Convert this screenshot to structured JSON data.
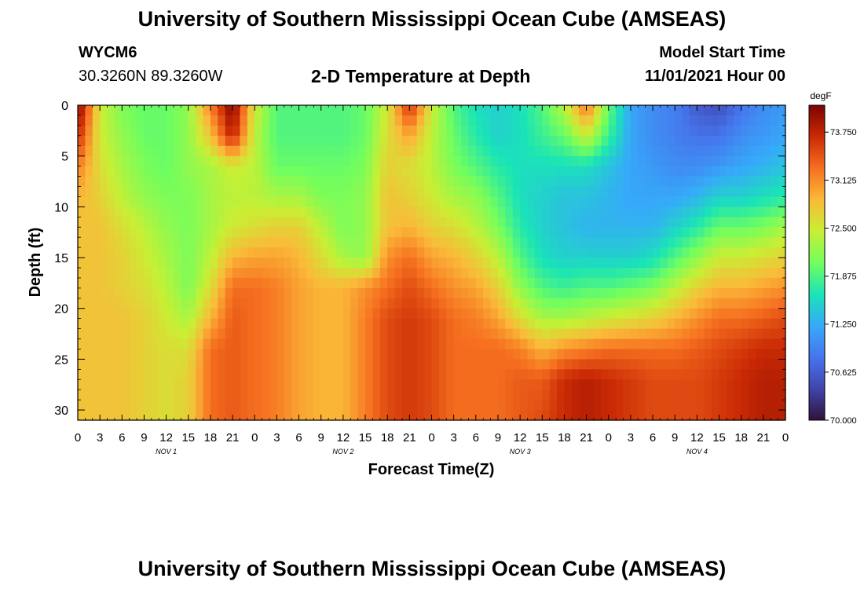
{
  "header": {
    "title": "University of Southern Mississippi Ocean Cube (AMSEAS)",
    "station": "WYCM6",
    "coords": "30.3260N  89.3260W",
    "plot_title": "2-D Temperature at Depth",
    "model_start_label": "Model Start Time",
    "model_start_value": "11/01/2021 Hour 00"
  },
  "footer": {
    "title": "University of Southern Mississippi Ocean Cube (AMSEAS)"
  },
  "chart_data": {
    "type": "heatmap",
    "title": "2-D Temperature at Depth",
    "xlabel": "Forecast Time(Z)",
    "ylabel": "Depth (ft)",
    "x_hours_range": [
      0,
      96
    ],
    "x_tick_labels": [
      "0",
      "3",
      "6",
      "9",
      "12",
      "15",
      "18",
      "21",
      "0",
      "3",
      "6",
      "9",
      "12",
      "15",
      "18",
      "21",
      "0",
      "3",
      "6",
      "9",
      "12",
      "15",
      "18",
      "21",
      "0",
      "3",
      "6",
      "9",
      "12",
      "15",
      "18",
      "21",
      "0"
    ],
    "day_labels": [
      "NOV 1",
      "NOV 2",
      "NOV 3",
      "NOV 4"
    ],
    "y_range": [
      0,
      31
    ],
    "y_ticks": [
      0,
      5,
      10,
      15,
      20,
      25,
      30
    ],
    "colorbar": {
      "unit": "degF",
      "min": 70.0,
      "max": 74.1,
      "tick_values": [
        73.75,
        73.125,
        72.5,
        71.875,
        71.25,
        70.625,
        70.0
      ],
      "tick_labels": [
        "73.750",
        "73.125",
        "72.500",
        "71.875",
        "71.250",
        "70.625",
        "70.000"
      ]
    },
    "profile_depths_ft": [
      0,
      3,
      6,
      9,
      12,
      15,
      18,
      21,
      24,
      27,
      31
    ],
    "profiles": [
      {
        "hour": 0,
        "temps": [
          74.1,
          73.7,
          73.2,
          72.9,
          72.8,
          72.8,
          72.8,
          72.8,
          72.8,
          72.8,
          72.8
        ]
      },
      {
        "hour": 3,
        "temps": [
          72.5,
          72.5,
          72.6,
          72.7,
          72.8,
          72.8,
          72.8,
          72.8,
          72.8,
          72.8,
          72.8
        ]
      },
      {
        "hour": 6,
        "temps": [
          72.1,
          72.2,
          72.3,
          72.4,
          72.6,
          72.7,
          72.7,
          72.8,
          72.8,
          72.8,
          72.8
        ]
      },
      {
        "hour": 9,
        "temps": [
          72.0,
          72.0,
          72.1,
          72.2,
          72.4,
          72.5,
          72.6,
          72.7,
          72.7,
          72.7,
          72.7
        ]
      },
      {
        "hour": 12,
        "temps": [
          72.0,
          72.0,
          72.0,
          72.1,
          72.2,
          72.3,
          72.4,
          72.5,
          72.6,
          72.6,
          72.6
        ]
      },
      {
        "hour": 15,
        "temps": [
          72.2,
          72.2,
          72.2,
          72.1,
          72.1,
          72.1,
          72.1,
          72.3,
          72.6,
          72.7,
          72.7
        ]
      },
      {
        "hour": 18,
        "temps": [
          73.2,
          72.8,
          72.3,
          72.3,
          72.3,
          72.4,
          72.6,
          72.9,
          73.3,
          73.3,
          73.3
        ]
      },
      {
        "hour": 21,
        "temps": [
          74.1,
          73.8,
          72.5,
          72.4,
          72.5,
          72.9,
          73.3,
          73.4,
          73.4,
          73.4,
          73.4
        ]
      },
      {
        "hour": 24,
        "temps": [
          72.5,
          72.4,
          72.4,
          72.4,
          72.6,
          73.0,
          73.3,
          73.3,
          73.3,
          73.3,
          73.3
        ]
      },
      {
        "hour": 27,
        "temps": [
          71.9,
          71.9,
          72.0,
          72.3,
          72.7,
          73.0,
          73.2,
          73.2,
          73.2,
          73.2,
          73.2
        ]
      },
      {
        "hour": 30,
        "temps": [
          71.9,
          71.9,
          72.0,
          72.3,
          72.7,
          72.9,
          73.0,
          73.0,
          73.0,
          73.0,
          73.0
        ]
      },
      {
        "hour": 33,
        "temps": [
          71.9,
          71.9,
          72.0,
          72.1,
          72.4,
          72.6,
          72.9,
          72.9,
          72.9,
          72.9,
          72.9
        ]
      },
      {
        "hour": 36,
        "temps": [
          71.9,
          71.9,
          72.0,
          72.1,
          72.1,
          72.3,
          72.9,
          72.9,
          72.9,
          72.9,
          72.9
        ]
      },
      {
        "hour": 39,
        "temps": [
          72.0,
          72.0,
          72.1,
          72.2,
          72.2,
          72.2,
          73.1,
          73.2,
          73.2,
          73.2,
          73.2
        ]
      },
      {
        "hour": 42,
        "temps": [
          72.5,
          72.6,
          72.7,
          72.8,
          72.8,
          73.1,
          73.3,
          73.5,
          73.5,
          73.5,
          73.5
        ]
      },
      {
        "hour": 45,
        "temps": [
          73.7,
          73.0,
          72.6,
          72.7,
          72.9,
          73.3,
          73.5,
          73.6,
          73.6,
          73.6,
          73.6
        ]
      },
      {
        "hour": 48,
        "temps": [
          72.5,
          72.4,
          72.4,
          72.5,
          72.7,
          73.0,
          73.3,
          73.5,
          73.5,
          73.5,
          73.5
        ]
      },
      {
        "hour": 51,
        "temps": [
          71.9,
          72.0,
          72.1,
          72.3,
          72.6,
          72.9,
          73.1,
          73.3,
          73.3,
          73.3,
          73.3
        ]
      },
      {
        "hour": 54,
        "temps": [
          71.6,
          71.7,
          71.9,
          72.2,
          72.4,
          72.7,
          73.0,
          73.2,
          73.3,
          73.3,
          73.3
        ]
      },
      {
        "hour": 57,
        "temps": [
          71.5,
          71.5,
          71.7,
          71.9,
          72.1,
          72.4,
          72.7,
          73.0,
          73.3,
          73.3,
          73.3
        ]
      },
      {
        "hour": 60,
        "temps": [
          71.6,
          71.6,
          71.6,
          71.6,
          71.7,
          71.9,
          72.2,
          72.6,
          73.2,
          73.4,
          73.4
        ]
      },
      {
        "hour": 63,
        "temps": [
          71.9,
          71.8,
          71.6,
          71.5,
          71.5,
          71.6,
          71.9,
          72.3,
          72.9,
          73.4,
          73.5
        ]
      },
      {
        "hour": 66,
        "temps": [
          72.4,
          72.0,
          71.6,
          71.4,
          71.4,
          71.5,
          71.8,
          72.3,
          73.1,
          73.7,
          73.7
        ]
      },
      {
        "hour": 69,
        "temps": [
          73.3,
          72.5,
          71.6,
          71.4,
          71.3,
          71.5,
          71.9,
          72.4,
          73.2,
          73.8,
          73.8
        ]
      },
      {
        "hour": 72,
        "temps": [
          72.0,
          71.8,
          71.4,
          71.3,
          71.3,
          71.5,
          71.9,
          72.5,
          73.3,
          73.7,
          73.7
        ]
      },
      {
        "hour": 75,
        "temps": [
          71.2,
          71.2,
          71.2,
          71.2,
          71.3,
          71.5,
          72.0,
          72.6,
          73.3,
          73.6,
          73.6
        ]
      },
      {
        "hour": 78,
        "temps": [
          71.0,
          71.0,
          71.1,
          71.2,
          71.3,
          71.6,
          72.1,
          72.7,
          73.3,
          73.5,
          73.5
        ]
      },
      {
        "hour": 81,
        "temps": [
          70.9,
          70.9,
          71.0,
          71.2,
          71.5,
          71.9,
          72.4,
          72.9,
          73.3,
          73.5,
          73.5
        ]
      },
      {
        "hour": 84,
        "temps": [
          70.6,
          70.8,
          71.0,
          71.3,
          71.7,
          72.2,
          72.7,
          73.1,
          73.4,
          73.5,
          73.5
        ]
      },
      {
        "hour": 87,
        "temps": [
          70.5,
          70.8,
          71.1,
          71.5,
          72.0,
          72.5,
          72.9,
          73.3,
          73.5,
          73.6,
          73.6
        ]
      },
      {
        "hour": 90,
        "temps": [
          70.8,
          71.0,
          71.2,
          71.5,
          72.0,
          72.5,
          72.9,
          73.3,
          73.6,
          73.7,
          73.7
        ]
      },
      {
        "hour": 93,
        "temps": [
          71.0,
          71.1,
          71.3,
          71.6,
          72.1,
          72.6,
          73.0,
          73.4,
          73.7,
          73.8,
          73.8
        ]
      },
      {
        "hour": 96,
        "temps": [
          71.1,
          71.2,
          71.4,
          71.7,
          72.3,
          72.7,
          73.1,
          73.5,
          73.7,
          73.8,
          73.8
        ]
      }
    ]
  }
}
